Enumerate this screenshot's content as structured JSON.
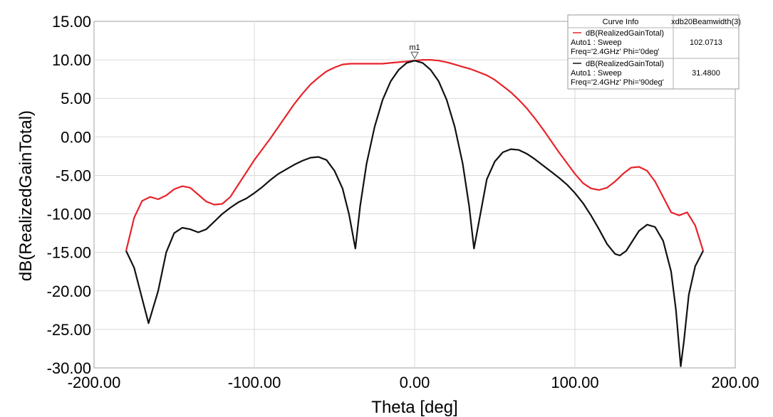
{
  "chart_data": {
    "type": "line",
    "title": "",
    "xlabel": "Theta [deg]",
    "ylabel": "dB(RealizedGainTotal)",
    "xlim": [
      -200,
      200
    ],
    "ylim": [
      -30,
      15
    ],
    "grid": true,
    "x_ticks": [
      "-200.00",
      "-100.00",
      "0.00",
      "100.00",
      "200.00"
    ],
    "y_ticks": [
      "15.00",
      "10.00",
      "5.00",
      "0.00",
      "-5.00",
      "-10.00",
      "-15.00",
      "-20.00",
      "-25.00",
      "-30.00"
    ],
    "legend": {
      "placement": "top-right",
      "header": [
        "Curve Info",
        "xdb20Beamwidth(3)"
      ],
      "entries": [
        {
          "line1": "dB(RealizedGainTotal)",
          "line2": "Auto1 : Sweep",
          "line3": "Freq='2.4GHz' Phi='0deg'",
          "value": "102.0713",
          "color": "#e8232a"
        },
        {
          "line1": "dB(RealizedGainTotal)",
          "line2": "Auto1 : Sweep",
          "line3": "Freq='2.4GHz' Phi='90deg'",
          "value": "31.4800",
          "color": "#111111"
        }
      ]
    },
    "marker": {
      "label": "m1",
      "x": 0,
      "y": 9.9
    },
    "series": [
      {
        "color": "#e8232a",
        "points": [
          [
            -180,
            -14.8
          ],
          [
            -175,
            -10.5
          ],
          [
            -170,
            -8.3
          ],
          [
            -165,
            -7.8
          ],
          [
            -160,
            -8.1
          ],
          [
            -155,
            -7.6
          ],
          [
            -150,
            -6.8
          ],
          [
            -145,
            -6.4
          ],
          [
            -140,
            -6.6
          ],
          [
            -135,
            -7.5
          ],
          [
            -130,
            -8.4
          ],
          [
            -125,
            -8.8
          ],
          [
            -120,
            -8.7
          ],
          [
            -115,
            -7.8
          ],
          [
            -110,
            -6.2
          ],
          [
            -105,
            -4.6
          ],
          [
            -100,
            -3.0
          ],
          [
            -95,
            -1.6
          ],
          [
            -90,
            -0.2
          ],
          [
            -85,
            1.3
          ],
          [
            -80,
            2.8
          ],
          [
            -75,
            4.3
          ],
          [
            -70,
            5.6
          ],
          [
            -65,
            6.8
          ],
          [
            -60,
            7.7
          ],
          [
            -55,
            8.5
          ],
          [
            -50,
            9.0
          ],
          [
            -45,
            9.4
          ],
          [
            -40,
            9.5
          ],
          [
            -35,
            9.5
          ],
          [
            -30,
            9.5
          ],
          [
            -25,
            9.5
          ],
          [
            -20,
            9.5
          ],
          [
            -15,
            9.6
          ],
          [
            -10,
            9.7
          ],
          [
            -5,
            9.8
          ],
          [
            0,
            9.9
          ],
          [
            5,
            10.0
          ],
          [
            10,
            10.0
          ],
          [
            15,
            9.9
          ],
          [
            20,
            9.7
          ],
          [
            25,
            9.4
          ],
          [
            30,
            9.1
          ],
          [
            35,
            8.8
          ],
          [
            40,
            8.4
          ],
          [
            45,
            8.0
          ],
          [
            50,
            7.4
          ],
          [
            55,
            6.6
          ],
          [
            60,
            5.8
          ],
          [
            65,
            4.8
          ],
          [
            70,
            3.7
          ],
          [
            75,
            2.4
          ],
          [
            80,
            1.0
          ],
          [
            85,
            -0.5
          ],
          [
            90,
            -2.0
          ],
          [
            95,
            -3.4
          ],
          [
            100,
            -4.8
          ],
          [
            105,
            -6.0
          ],
          [
            110,
            -6.7
          ],
          [
            115,
            -6.9
          ],
          [
            120,
            -6.6
          ],
          [
            125,
            -5.8
          ],
          [
            130,
            -4.8
          ],
          [
            135,
            -4.0
          ],
          [
            140,
            -3.9
          ],
          [
            145,
            -4.4
          ],
          [
            150,
            -5.8
          ],
          [
            155,
            -7.8
          ],
          [
            160,
            -9.8
          ],
          [
            165,
            -10.2
          ],
          [
            170,
            -9.8
          ],
          [
            175,
            -11.5
          ],
          [
            180,
            -14.8
          ]
        ]
      },
      {
        "color": "#111111",
        "points": [
          [
            -180,
            -14.8
          ],
          [
            -175,
            -17.0
          ],
          [
            -170,
            -21.0
          ],
          [
            -166,
            -24.2
          ],
          [
            -160,
            -20.0
          ],
          [
            -155,
            -15.0
          ],
          [
            -150,
            -12.5
          ],
          [
            -145,
            -11.8
          ],
          [
            -140,
            -12.0
          ],
          [
            -135,
            -12.4
          ],
          [
            -130,
            -12.0
          ],
          [
            -125,
            -11.0
          ],
          [
            -120,
            -10.0
          ],
          [
            -115,
            -9.2
          ],
          [
            -110,
            -8.5
          ],
          [
            -105,
            -8.0
          ],
          [
            -100,
            -7.3
          ],
          [
            -95,
            -6.5
          ],
          [
            -90,
            -5.6
          ],
          [
            -85,
            -4.8
          ],
          [
            -80,
            -4.2
          ],
          [
            -75,
            -3.6
          ],
          [
            -70,
            -3.1
          ],
          [
            -65,
            -2.7
          ],
          [
            -60,
            -2.6
          ],
          [
            -55,
            -3.0
          ],
          [
            -50,
            -4.4
          ],
          [
            -45,
            -6.7
          ],
          [
            -41,
            -10.0
          ],
          [
            -37,
            -14.5
          ],
          [
            -34,
            -9.0
          ],
          [
            -30,
            -3.5
          ],
          [
            -25,
            1.3
          ],
          [
            -20,
            4.8
          ],
          [
            -15,
            7.2
          ],
          [
            -10,
            8.7
          ],
          [
            -5,
            9.6
          ],
          [
            0,
            9.9
          ],
          [
            5,
            9.6
          ],
          [
            10,
            8.7
          ],
          [
            15,
            7.2
          ],
          [
            20,
            4.8
          ],
          [
            25,
            1.3
          ],
          [
            30,
            -3.5
          ],
          [
            34,
            -9.0
          ],
          [
            37,
            -14.5
          ],
          [
            41,
            -10.0
          ],
          [
            45,
            -5.5
          ],
          [
            50,
            -3.2
          ],
          [
            55,
            -2.0
          ],
          [
            60,
            -1.6
          ],
          [
            65,
            -1.7
          ],
          [
            70,
            -2.2
          ],
          [
            75,
            -2.9
          ],
          [
            80,
            -3.7
          ],
          [
            85,
            -4.5
          ],
          [
            90,
            -5.3
          ],
          [
            95,
            -6.2
          ],
          [
            100,
            -7.3
          ],
          [
            105,
            -8.6
          ],
          [
            110,
            -10.2
          ],
          [
            115,
            -12.0
          ],
          [
            120,
            -13.9
          ],
          [
            125,
            -15.2
          ],
          [
            128,
            -15.4
          ],
          [
            132,
            -14.8
          ],
          [
            136,
            -13.5
          ],
          [
            140,
            -12.2
          ],
          [
            145,
            -11.4
          ],
          [
            150,
            -11.7
          ],
          [
            155,
            -13.5
          ],
          [
            160,
            -17.5
          ],
          [
            163,
            -22.5
          ],
          [
            166,
            -29.8
          ],
          [
            168,
            -26.5
          ],
          [
            171,
            -20.5
          ],
          [
            175,
            -16.8
          ],
          [
            180,
            -14.8
          ]
        ]
      }
    ]
  }
}
